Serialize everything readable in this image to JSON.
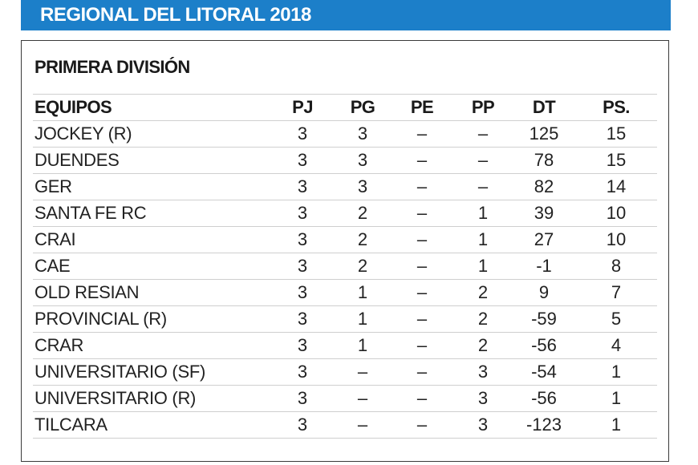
{
  "header": {
    "title": "REGIONAL DEL LITORAL 2018"
  },
  "division": {
    "title": "PRIMERA DIVISIÓN"
  },
  "table": {
    "columns": [
      "EQUIPOS",
      "PJ",
      "PG",
      "PE",
      "PP",
      "DT",
      "PS."
    ],
    "rows": [
      [
        "JOCKEY (R)",
        "3",
        "3",
        "–",
        "–",
        "125",
        "15"
      ],
      [
        "DUENDES",
        "3",
        "3",
        "–",
        "–",
        "78",
        "15"
      ],
      [
        "GER",
        "3",
        "3",
        "–",
        "–",
        "82",
        "14"
      ],
      [
        "SANTA FE RC",
        "3",
        "2",
        "–",
        "1",
        "39",
        "10"
      ],
      [
        "CRAI",
        "3",
        "2",
        "–",
        "1",
        "27",
        "10"
      ],
      [
        "CAE",
        "3",
        "2",
        "–",
        "1",
        "-1",
        "8"
      ],
      [
        "OLD RESIAN",
        "3",
        "1",
        "–",
        "2",
        "9",
        "7"
      ],
      [
        "PROVINCIAL (R)",
        "3",
        "1",
        "–",
        "2",
        "-59",
        "5"
      ],
      [
        "CRAR",
        "3",
        "1",
        "–",
        "2",
        "-56",
        "4"
      ],
      [
        "UNIVERSITARIO (SF)",
        "3",
        "–",
        "–",
        "3",
        "-54",
        "1"
      ],
      [
        "UNIVERSITARIO (R)",
        "3",
        "–",
        "–",
        "3",
        "-56",
        "1"
      ],
      [
        "TILCARA",
        "3",
        "–",
        "–",
        "3",
        "-123",
        "1"
      ]
    ]
  },
  "colors": {
    "banner": "#1c7fc9",
    "banner_text": "#ffffff",
    "frame_border": "#3a3a3a",
    "row_divider": "#cfcfcf"
  }
}
